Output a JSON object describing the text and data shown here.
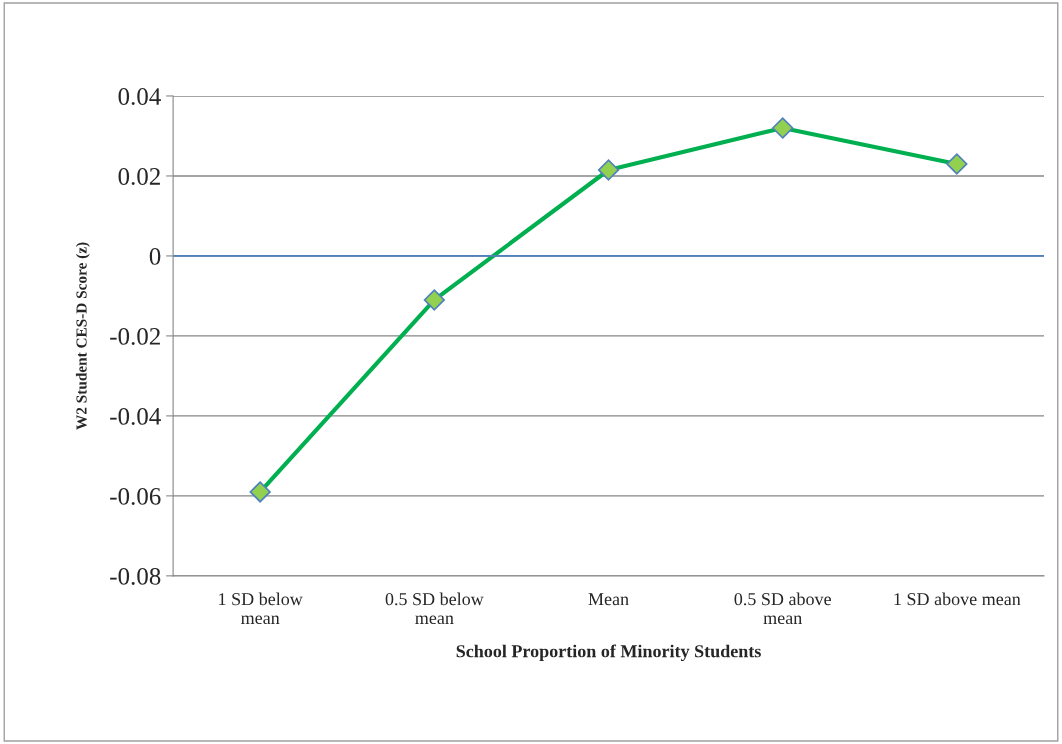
{
  "chart_data": {
    "type": "line",
    "xlabel": "School Proportion of Minority Students",
    "ylabel": "W2 Student CES-D Score (z)",
    "categories": [
      "1 SD below\nmean",
      "0.5 SD below\nmean",
      "Mean",
      "0.5 SD above\nmean",
      "1 SD above mean"
    ],
    "series": [
      {
        "color": "#00b050",
        "values": [
          -0.059,
          -0.011,
          0.0215,
          0.032,
          0.023
        ]
      }
    ],
    "ylim": [
      -0.08,
      0.04
    ],
    "yticks": [
      -0.08,
      -0.06,
      -0.04,
      -0.02,
      0,
      0.02,
      0.04
    ],
    "ref_lines": [
      {
        "axis": "y",
        "value": 0,
        "color": "#4f81bd"
      }
    ],
    "grid": "y",
    "marker": "diamond",
    "line_style": "solid",
    "legend": false
  }
}
